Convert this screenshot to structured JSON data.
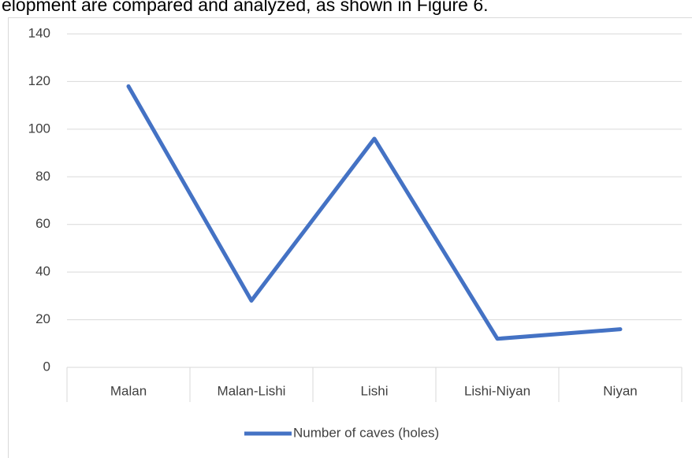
{
  "page_text": "elopment are compared and analyzed, as shown in Figure 6.",
  "chart_data": {
    "type": "line",
    "categories": [
      "Malan",
      "Malan-Lishi",
      "Lishi",
      "Lishi-Niyan",
      "Niyan"
    ],
    "series": [
      {
        "name": "Number of caves (holes)",
        "color": "#4472c4",
        "values": [
          118,
          28,
          96,
          12,
          16
        ]
      }
    ],
    "ylim": [
      0,
      140
    ],
    "yticks": [
      0,
      20,
      40,
      60,
      80,
      100,
      120,
      140
    ],
    "grid": true,
    "legend": "bottom"
  }
}
